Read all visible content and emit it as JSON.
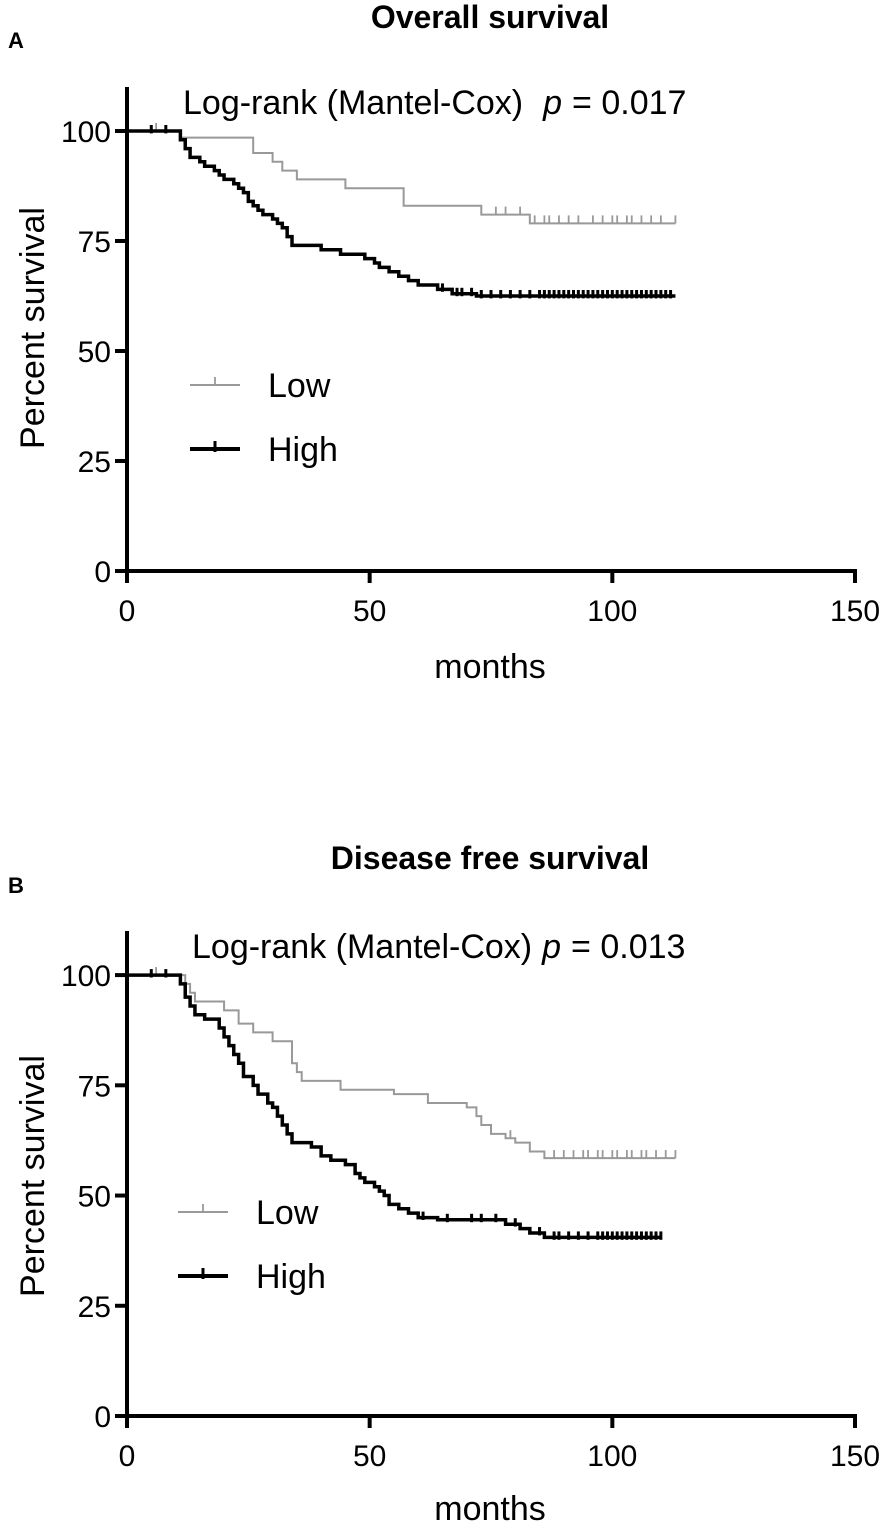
{
  "chart_data": [
    {
      "type": "line",
      "panel": "A",
      "title": "Overall survival",
      "annotation": {
        "prefix": "Log-rank (Mantel-Cox)",
        "p_symbol": "p",
        "p_value": "= 0.017"
      },
      "xlabel": "months",
      "ylabel": "Percent survival",
      "xlim": [
        0,
        150
      ],
      "ylim": [
        0,
        110
      ],
      "xticks": [
        0,
        50,
        100,
        150
      ],
      "yticks": [
        0,
        25,
        50,
        75,
        100
      ],
      "legend_position": "middle-left",
      "series": [
        {
          "name": "Low",
          "color": "#999999",
          "steps": [
            [
              0,
              100
            ],
            [
              11,
              98.5
            ],
            [
              26,
              98.5
            ],
            [
              26,
              95
            ],
            [
              30,
              93
            ],
            [
              32,
              91
            ],
            [
              35,
              89
            ],
            [
              45,
              87
            ],
            [
              57,
              83
            ],
            [
              73,
              83
            ],
            [
              73,
              81
            ],
            [
              83,
              81
            ],
            [
              83,
              79
            ],
            [
              113,
              79
            ]
          ],
          "censored": [
            6,
            76,
            78,
            81,
            84,
            86,
            87,
            89,
            91,
            93,
            96,
            98,
            100,
            101,
            103,
            104,
            106,
            108,
            110,
            113
          ]
        },
        {
          "name": "High",
          "color": "#000000",
          "steps": [
            [
              0,
              100
            ],
            [
              10,
              100
            ],
            [
              11,
              98
            ],
            [
              12,
              96
            ],
            [
              13,
              94
            ],
            [
              15,
              93
            ],
            [
              16,
              92
            ],
            [
              18,
              91
            ],
            [
              19,
              90
            ],
            [
              20,
              89
            ],
            [
              22,
              88
            ],
            [
              23,
              87
            ],
            [
              24,
              86
            ],
            [
              25,
              84
            ],
            [
              26,
              83
            ],
            [
              27,
              82
            ],
            [
              28,
              81
            ],
            [
              30,
              80
            ],
            [
              31,
              79
            ],
            [
              32,
              78
            ],
            [
              33,
              76
            ],
            [
              34,
              74
            ],
            [
              40,
              73
            ],
            [
              44,
              72
            ],
            [
              49,
              71
            ],
            [
              51,
              70
            ],
            [
              52,
              69
            ],
            [
              54,
              68
            ],
            [
              56,
              67
            ],
            [
              58,
              66
            ],
            [
              60,
              65
            ],
            [
              64,
              64
            ],
            [
              67,
              63
            ],
            [
              72,
              62.5
            ],
            [
              113,
              62.5
            ]
          ],
          "censored": [
            5,
            8,
            65,
            68,
            69,
            71,
            73,
            75,
            77,
            79,
            81,
            83,
            85,
            86,
            87,
            88,
            89,
            90,
            91,
            92,
            93,
            94,
            95,
            96,
            97,
            98,
            99,
            100,
            101,
            102,
            103,
            104,
            105,
            106,
            107,
            108,
            109,
            110,
            111,
            112
          ]
        }
      ]
    },
    {
      "type": "line",
      "panel": "B",
      "title": "Disease free survival",
      "annotation": {
        "prefix": "Log-rank (Mantel-Cox)",
        "p_symbol": "p",
        "p_value": "= 0.013"
      },
      "xlabel": "months",
      "ylabel": "Percent survival",
      "xlim": [
        0,
        150
      ],
      "ylim": [
        0,
        110
      ],
      "xticks": [
        0,
        50,
        100,
        150
      ],
      "yticks": [
        0,
        25,
        50,
        75,
        100
      ],
      "legend_position": "bottom-left",
      "series": [
        {
          "name": "Low",
          "color": "#999999",
          "steps": [
            [
              0,
              100
            ],
            [
              12,
              98
            ],
            [
              13,
              96
            ],
            [
              14,
              94
            ],
            [
              20,
              92
            ],
            [
              23,
              89
            ],
            [
              26,
              87
            ],
            [
              30,
              85
            ],
            [
              34,
              80
            ],
            [
              35,
              78
            ],
            [
              36,
              76
            ],
            [
              44,
              74
            ],
            [
              55,
              73
            ],
            [
              62,
              71
            ],
            [
              70,
              70
            ],
            [
              72,
              68
            ],
            [
              73,
              66
            ],
            [
              75,
              64
            ],
            [
              78,
              63
            ],
            [
              80,
              62
            ],
            [
              83,
              60
            ],
            [
              86,
              58.5
            ],
            [
              113,
              58.5
            ]
          ],
          "censored": [
            6,
            79,
            88,
            90,
            92,
            94,
            95,
            97,
            98,
            100,
            101,
            103,
            104,
            106,
            107,
            109,
            111,
            113
          ]
        },
        {
          "name": "High",
          "color": "#000000",
          "steps": [
            [
              0,
              100
            ],
            [
              10,
              100
            ],
            [
              11,
              98
            ],
            [
              12,
              95
            ],
            [
              13,
              93
            ],
            [
              14,
              91
            ],
            [
              16,
              90
            ],
            [
              19,
              88
            ],
            [
              20,
              86
            ],
            [
              21,
              84
            ],
            [
              22,
              82
            ],
            [
              23,
              80
            ],
            [
              24,
              77
            ],
            [
              26,
              75
            ],
            [
              27,
              73
            ],
            [
              29,
              71
            ],
            [
              30,
              70
            ],
            [
              31,
              68
            ],
            [
              32,
              66
            ],
            [
              33,
              64
            ],
            [
              34,
              62
            ],
            [
              38,
              61
            ],
            [
              40,
              59
            ],
            [
              42,
              58
            ],
            [
              45,
              57
            ],
            [
              47,
              55
            ],
            [
              48,
              54
            ],
            [
              49,
              53
            ],
            [
              51,
              52
            ],
            [
              52,
              51
            ],
            [
              53,
              50
            ],
            [
              54,
              48
            ],
            [
              56,
              47
            ],
            [
              58,
              46
            ],
            [
              60,
              45
            ],
            [
              64,
              44.5
            ],
            [
              78,
              43.5
            ],
            [
              81,
              42.5
            ],
            [
              83,
              41.5
            ],
            [
              86,
              40.5
            ],
            [
              110,
              40.5
            ]
          ],
          "censored": [
            5,
            8,
            61,
            66,
            71,
            73,
            76,
            80,
            85,
            88,
            89,
            91,
            93,
            95,
            97,
            98,
            99,
            100,
            101,
            102,
            103,
            104,
            105,
            106,
            107,
            108,
            109,
            110
          ]
        }
      ]
    }
  ]
}
